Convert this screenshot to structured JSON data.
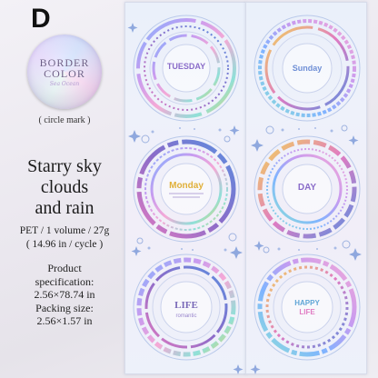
{
  "variant_letter": "D",
  "badge": {
    "line1": "BORDER",
    "line2": "COLOR",
    "script": "Sea Ocean"
  },
  "circle_mark": "( circle mark )",
  "headline": [
    "Starry sky",
    "clouds",
    "and rain"
  ],
  "spec": {
    "material": "PET / 1 volume / 27g",
    "cycle": "( 14.96 in / cycle )",
    "product_label": "Product",
    "product_spec_label": "specification:",
    "product_size": "2.56×78.74 in",
    "packing_label": "Packing size:",
    "packing_size": "2.56×1.57 in"
  },
  "stickers": {
    "s1": "TUESDAY",
    "s2": "Monday",
    "s3": "LIFE",
    "s3b": "romantic",
    "s4": "Sunday",
    "s5": "DAY",
    "s6": "HAPPY",
    "s6b": "LIFE"
  },
  "colors": {
    "accent_purple": "#8a6cc9",
    "accent_blue": "#5c8fe0",
    "accent_pink": "#e07bc2",
    "accent_yellow": "#f2cf4d",
    "accent_teal": "#5fc4c0"
  },
  "icons": [
    "sparkle-star-icon",
    "dot-ring-icon"
  ]
}
